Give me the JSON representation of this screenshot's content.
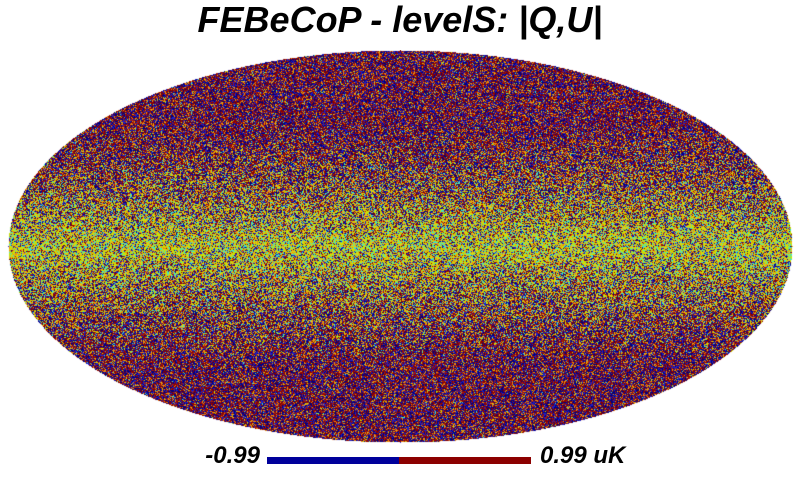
{
  "title": "FEBeCoP - levelS: |Q,U|",
  "colorbar": {
    "min_label": "-0.99",
    "max_label": "0.99 uK",
    "low_color": "#00009b",
    "high_color": "#8c0000"
  },
  "map": {
    "projection": "mollweide",
    "palette": [
      "#00007f",
      "#1e1ec8",
      "#8c0000",
      "#a01e14",
      "#f08c0a",
      "#e6c81e",
      "#c8e600",
      "#3ce6c8"
    ],
    "background": "#ffffff"
  }
}
